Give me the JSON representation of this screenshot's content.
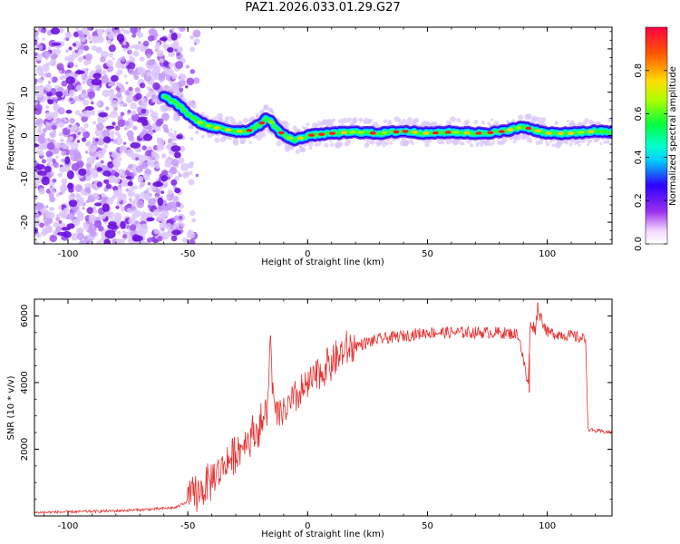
{
  "title": "PAZ1.2026.033.01.29.G27",
  "chart_data": [
    {
      "type": "heatmap",
      "name": "spectrogram",
      "xlabel": "Height of straight line (km)",
      "ylabel": "Frequency (Hz)",
      "xlim": [
        -114,
        127
      ],
      "ylim": [
        -25,
        25
      ],
      "xticks": [
        -100,
        -50,
        0,
        50,
        100
      ],
      "xtick_labels": [
        "-100",
        "-50",
        "0",
        "50",
        "100"
      ],
      "yticks": [
        -20,
        -10,
        0,
        10,
        20
      ],
      "ytick_labels": [
        "-20",
        "-10",
        "0",
        "10",
        "20"
      ],
      "ridge_x": [
        -60,
        -55,
        -50,
        -45,
        -40,
        -35,
        -30,
        -25,
        -20,
        -17,
        -15,
        -12,
        -8,
        -5,
        0,
        10,
        20,
        30,
        40,
        50,
        60,
        70,
        80,
        90,
        100,
        110,
        120,
        127
      ],
      "ridge_y": [
        9,
        7.5,
        5,
        3,
        2,
        1.5,
        1,
        1,
        2.5,
        4,
        3,
        1,
        -0.5,
        -1,
        0,
        0.5,
        0.8,
        0.5,
        1,
        0.5,
        0.8,
        0.5,
        0.8,
        2,
        0.5,
        0.5,
        1,
        0.8
      ],
      "noise_region_x": [
        -114,
        -52
      ],
      "colorbar": {
        "label": "Normalized spectral amplitude",
        "range": [
          0,
          1
        ],
        "ticks": [
          0.0,
          0.2,
          0.4,
          0.6,
          0.8
        ],
        "tick_labels": [
          "0.0",
          "0.2",
          "0.4",
          "0.6",
          "0.8"
        ]
      }
    },
    {
      "type": "line",
      "name": "snr",
      "xlabel": "Height of straight line (km)",
      "ylabel": "SNR (10 * v/v)",
      "xlim": [
        -114,
        127
      ],
      "ylim": [
        0,
        6500
      ],
      "xticks": [
        -100,
        -50,
        0,
        50,
        100
      ],
      "xtick_labels": [
        "-100",
        "-50",
        "0",
        "50",
        "100"
      ],
      "yticks": [
        2000,
        4000,
        6000
      ],
      "ytick_labels": [
        "2000",
        "4000",
        "6000"
      ],
      "color": "#e8302f",
      "series": [
        {
          "name": "SNR",
          "x": [
            -114,
            -100,
            -80,
            -65,
            -55,
            -50,
            -45,
            -42,
            -40,
            -35,
            -30,
            -25,
            -20,
            -17,
            -15.5,
            -14,
            -10,
            -5,
            0,
            5,
            10,
            15,
            20,
            25,
            30,
            40,
            50,
            60,
            70,
            80,
            88,
            92,
            93,
            95,
            96,
            100,
            110,
            116,
            117,
            120,
            127
          ],
          "y": [
            100,
            120,
            150,
            200,
            250,
            450,
            750,
            900,
            1100,
            1500,
            1900,
            2300,
            2700,
            3000,
            5300,
            3000,
            3100,
            3500,
            3900,
            4300,
            4600,
            4900,
            5100,
            5200,
            5300,
            5400,
            5500,
            5500,
            5500,
            5500,
            5450,
            3900,
            5800,
            5600,
            6200,
            5500,
            5400,
            5300,
            2600,
            2550,
            2500
          ],
          "spikes": [
            {
              "x": -15.5,
              "y": 5400
            },
            {
              "x": 92.5,
              "y": 3700
            },
            {
              "x": 96,
              "y": 6400
            }
          ]
        }
      ]
    }
  ]
}
